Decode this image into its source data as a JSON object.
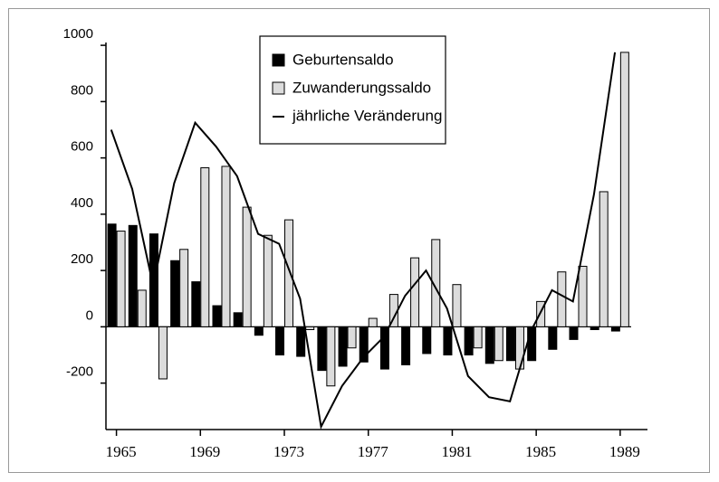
{
  "chart_data": {
    "type": "bar_line",
    "x": [
      1965,
      1966,
      1967,
      1968,
      1969,
      1970,
      1971,
      1972,
      1973,
      1974,
      1975,
      1976,
      1977,
      1978,
      1979,
      1980,
      1981,
      1982,
      1983,
      1984,
      1985,
      1986,
      1987,
      1988,
      1989
    ],
    "series": [
      {
        "name": "Geburtensaldo",
        "type": "bar",
        "color": "#000000",
        "values": [
          365,
          360,
          330,
          235,
          160,
          75,
          50,
          -30,
          -100,
          -105,
          -155,
          -140,
          -125,
          -150,
          -135,
          -95,
          -100,
          -100,
          -130,
          -120,
          -120,
          -80,
          -45,
          -10,
          -15
        ]
      },
      {
        "name": "Zuwanderungssaldo",
        "type": "bar",
        "color": "#dcdcdc",
        "values": [
          340,
          130,
          -185,
          275,
          565,
          570,
          425,
          325,
          380,
          -10,
          -210,
          -75,
          30,
          115,
          245,
          310,
          150,
          -75,
          -120,
          -150,
          90,
          195,
          215,
          480,
          975
        ]
      },
      {
        "name": "jährliche Veränderung",
        "type": "line",
        "color": "#000000",
        "values": [
          700,
          490,
          145,
          510,
          725,
          640,
          535,
          330,
          295,
          100,
          -355,
          -210,
          -110,
          -35,
          110,
          200,
          65,
          -175,
          -250,
          -265,
          -15,
          130,
          90,
          470,
          975
        ]
      }
    ],
    "xlim": [
      1964.5,
      1990.3
    ],
    "xticks": [
      1965,
      1969,
      1973,
      1977,
      1981,
      1985,
      1989
    ],
    "ylim": [
      -365,
      1010
    ],
    "yticks": [
      -200,
      0,
      200,
      400,
      600,
      800,
      1000
    ],
    "legend": "top-center"
  }
}
